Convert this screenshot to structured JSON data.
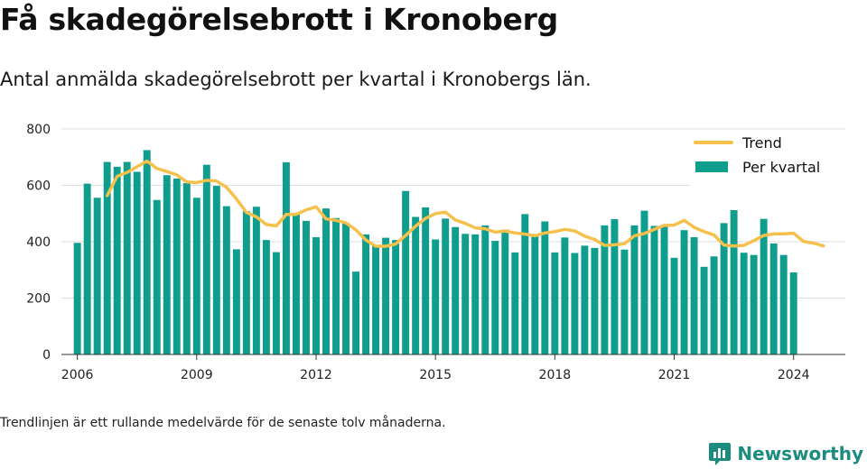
{
  "title": "Få skadegörelsebrott i Kronoberg",
  "subtitle": "Antal anmälda skadegörelsebrott per kvartal i Kronobergs län.",
  "footnote": "Trendlinjen är ett rullande medelvärde för de senaste tolv månaderna.",
  "brand": "Newsworthy",
  "colors": {
    "bars": "#0f9e8e",
    "trend": "#f5c04c",
    "grid": "#dddddd",
    "brand": "#1b8c7e"
  },
  "chart_data": {
    "type": "bar",
    "x_start": 2006.0,
    "x_step": 0.25,
    "xticks": [
      2006,
      2009,
      2012,
      2015,
      2018,
      2021,
      2024
    ],
    "xtick_labels": [
      "2006",
      "2009",
      "2012",
      "2015",
      "2018",
      "2021",
      "2024"
    ],
    "ylim": [
      0,
      800
    ],
    "yticks": [
      0,
      200,
      400,
      600,
      800
    ],
    "ytick_labels": [
      "0",
      "200",
      "400",
      "600",
      "800"
    ],
    "grid": true,
    "legend_position": "top-right",
    "legend": [
      "Trend",
      "Per kvartal"
    ],
    "series": [
      {
        "name": "Per kvartal",
        "type": "bar",
        "values": [
          396,
          606,
          556,
          683,
          666,
          683,
          648,
          725,
          548,
          636,
          624,
          608,
          556,
          673,
          598,
          526,
          373,
          508,
          524,
          406,
          363,
          682,
          496,
          474,
          416,
          518,
          484,
          466,
          294,
          426,
          386,
          414,
          406,
          580,
          488,
          522,
          408,
          482,
          452,
          428,
          426,
          458,
          403,
          443,
          362,
          498,
          425,
          472,
          362,
          415,
          360,
          386,
          378,
          458,
          480,
          372,
          458,
          510,
          456,
          454,
          343,
          441,
          416,
          311,
          348,
          466,
          512,
          361,
          353,
          481,
          394,
          353,
          291
        ],
        "x_start": 2006.0,
        "x_step": 0.25
      },
      {
        "name": "Trend",
        "type": "line",
        "values": [
          564,
          632,
          646,
          666,
          686,
          660,
          649,
          637,
          612,
          610,
          618,
          615,
          593,
          551,
          504,
          488,
          461,
          456,
          497,
          497,
          513,
          524,
          481,
          476,
          467,
          442,
          406,
          384,
          384,
          392,
          422,
          455,
          483,
          500,
          505,
          477,
          465,
          449,
          446,
          434,
          438,
          431,
          427,
          421,
          431,
          436,
          444,
          438,
          420,
          408,
          387,
          389,
          393,
          421,
          429,
          444,
          458,
          459,
          476,
          451,
          436,
          424,
          388,
          385,
          387,
          404,
          422,
          428,
          428,
          430,
          401,
          395,
          385
        ],
        "x_start": 2006.75,
        "x_step": 0.25
      }
    ]
  }
}
